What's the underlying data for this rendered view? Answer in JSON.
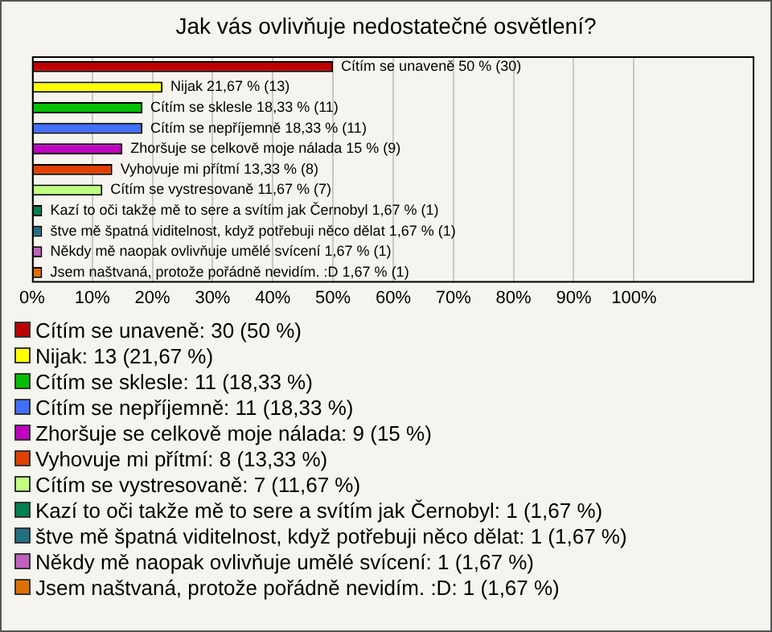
{
  "chart_data": {
    "type": "bar",
    "orientation": "horizontal",
    "title": "Jak vás ovlivňuje nedostatečné osvětlení?",
    "categories": [
      "Cítím se unaveně",
      "Nijak",
      "Cítím se sklesle",
      "Cítím se nepříjemně",
      "Zhoršuje se celkově moje nálada",
      "Vyhovuje mi přítmí",
      "Cítím se vystresovaně",
      "Kazí to oči takže mě to sere a svítím jak Černobyl",
      "štve mě špatná viditelnost, když potřebuji něco dělat",
      "Někdy mě naopak ovlivňuje umělé svícení",
      "Jsem naštvaná, protože pořádně nevidím. :D"
    ],
    "values": [
      50,
      21.67,
      18.33,
      18.33,
      15,
      13.33,
      11.67,
      1.67,
      1.67,
      1.67,
      1.67
    ],
    "value_labels": [
      "50 % (30)",
      "21,67 % (13)",
      "18,33 % (11)",
      "18,33 % (11)",
      "15 % (9)",
      "13,33 % (8)",
      "11,67 % (7)",
      "1,67 % (1)",
      "1,67 % (1)",
      "1,67 % (1)",
      "1,67 % (1)"
    ],
    "colors": [
      "#c00000",
      "#ffff00",
      "#00c000",
      "#4070ff",
      "#c000c0",
      "#e04000",
      "#c0ff80",
      "#008050",
      "#207080",
      "#c060c0",
      "#e07000"
    ],
    "xlim": [
      0,
      120
    ],
    "xticks": [
      {
        "value": 0,
        "label": "0%"
      },
      {
        "value": 10,
        "label": "10%"
      },
      {
        "value": 20,
        "label": "20%"
      },
      {
        "value": 30,
        "label": "30%"
      },
      {
        "value": 40,
        "label": "40%"
      },
      {
        "value": 50,
        "label": "50%"
      },
      {
        "value": 60,
        "label": "60%"
      },
      {
        "value": 70,
        "label": "70%"
      },
      {
        "value": 80,
        "label": "80%"
      },
      {
        "value": 90,
        "label": "90%"
      },
      {
        "value": 100,
        "label": "100%"
      }
    ],
    "tick_labels": "x",
    "grid": "x",
    "annotations": [
      "Cítím se unaveně: 30 (50 %)",
      "Nijak: 13 (21,67 %)",
      "Cítím se sklesle: 11 (18,33 %)",
      "Cítím se nepříjemně: 11 (18,33 %)",
      "Zhoršuje se celkově moje nálada: 9 (15 %)",
      "Vyhovuje mi přítmí: 8 (13,33 %)",
      "Cítím se vystresovaně: 7 (11,67 %)",
      "Kazí to oči takže mě to sere a svítím jak Černobyl: 1 (1,67 %)",
      "štve mě špatná viditelnost, když potřebuji něco dělat: 1 (1,67 %)",
      "Někdy mě naopak ovlivňuje umělé svícení: 1 (1,67 %)",
      "Jsem naštvaná, protože pořádně nevidím. :D: 1 (1,67 %)"
    ]
  }
}
